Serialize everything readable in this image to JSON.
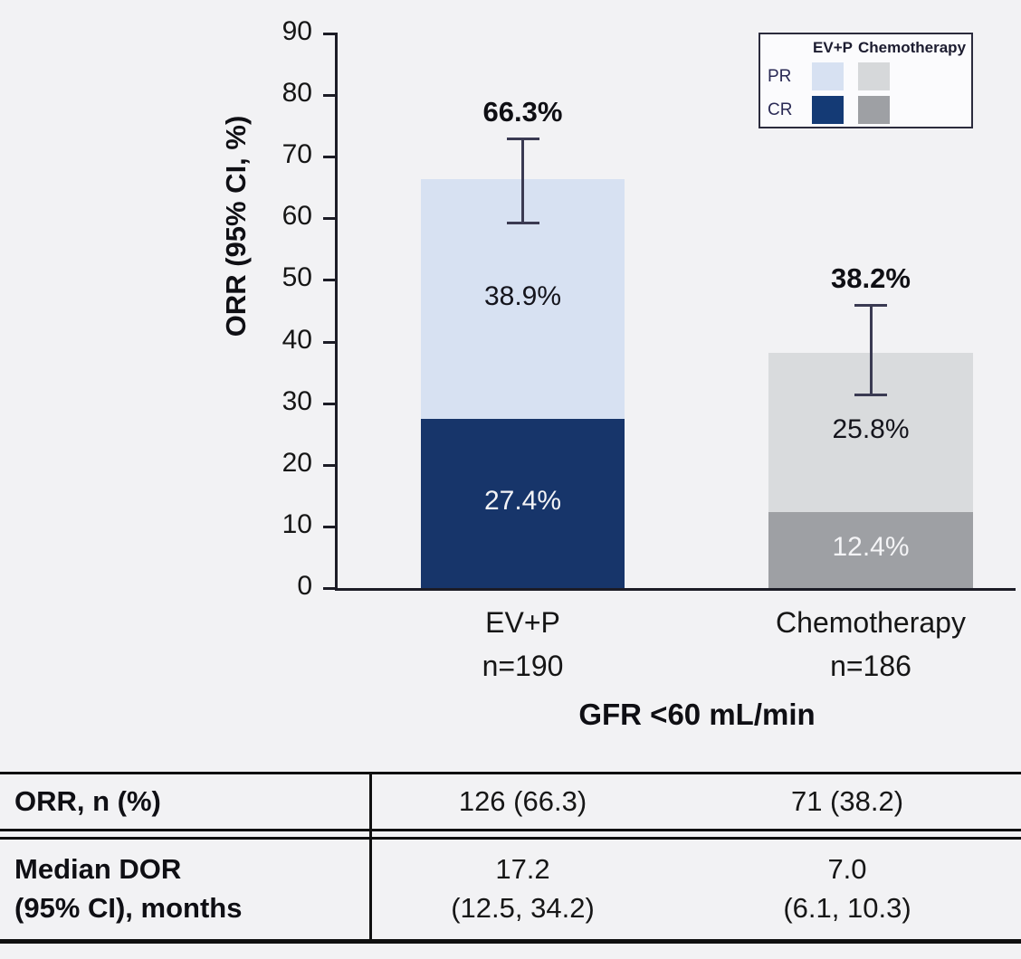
{
  "colors": {
    "evp_pr": "#d7e1f2",
    "evp_cr": "#17356a",
    "chemo_pr": "#d9dbdd",
    "chemo_cr": "#9ea0a4",
    "axis": "#1c1c26",
    "error_bar": "#3a3a52",
    "background": "#f2f2f4"
  },
  "chart_data": {
    "type": "bar",
    "stacked": true,
    "ylabel": "ORR (95% CI, %)",
    "xlabel": "GFR <60 mL/min",
    "ylim": [
      0,
      90
    ],
    "yticks": [
      "0",
      "10",
      "20",
      "30",
      "40",
      "50",
      "60",
      "70",
      "80",
      "90"
    ],
    "grid": false,
    "legend_position": "top-right",
    "groups": [
      {
        "key": "evp",
        "label": "EV+P",
        "sublabel": "n=190",
        "total": 66.3,
        "total_label": "66.3%",
        "ci": [
          59.2,
          73.0
        ],
        "segments": [
          {
            "name": "CR",
            "value": 27.4,
            "label": "27.4%",
            "color": "#17356a",
            "text_color": "#f4f4f6"
          },
          {
            "name": "PR",
            "value": 38.9,
            "label": "38.9%",
            "color": "#d7e1f2",
            "text_color": "#14141c"
          }
        ]
      },
      {
        "key": "chemo",
        "label": "Chemotherapy",
        "sublabel": "n=186",
        "total": 38.2,
        "total_label": "38.2%",
        "ci": [
          31.3,
          45.9
        ],
        "segments": [
          {
            "name": "CR",
            "value": 12.4,
            "label": "12.4%",
            "color": "#9ea0a4",
            "text_color": "#f4f4f6"
          },
          {
            "name": "PR",
            "value": 25.8,
            "label": "25.8%",
            "color": "#d9dbdd",
            "text_color": "#14141c"
          }
        ]
      }
    ]
  },
  "legend": {
    "columns": [
      {
        "label": "EV+P",
        "pr_color": "#d7e1f2",
        "cr_color": "#143a75"
      },
      {
        "label": "Chemotherapy",
        "pr_color": "#d6d8da",
        "cr_color": "#9ea0a4"
      }
    ],
    "row_labels": {
      "pr": "PR",
      "cr": "CR"
    }
  },
  "table": {
    "rows": [
      {
        "label": "ORR, n (%)",
        "evp": "126 (66.3)",
        "chemo": "71 (38.2)"
      },
      {
        "label": "Median DOR\n(95% CI), months",
        "evp": "17.2\n(12.5, 34.2)",
        "chemo": "7.0\n(6.1, 10.3)"
      }
    ]
  }
}
